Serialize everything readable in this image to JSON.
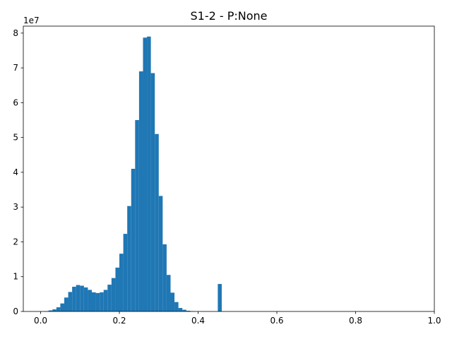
{
  "chart_data": {
    "type": "bar",
    "title": "S1-2 - P:None",
    "xlabel": "",
    "ylabel": "",
    "y_offset_label": "1e7",
    "y_scale_multiplier": 10000000,
    "xlim": [
      -0.044,
      1.0
    ],
    "ylim": [
      0,
      82000000
    ],
    "x_ticks": [
      "0.0",
      "0.2",
      "0.4",
      "0.6",
      "0.8",
      "1.0"
    ],
    "x_tick_values": [
      0.0,
      0.2,
      0.4,
      0.6,
      0.8,
      1.0
    ],
    "y_ticks": [
      "0",
      "1",
      "2",
      "3",
      "4",
      "5",
      "6",
      "7",
      "8"
    ],
    "y_tick_values": [
      0,
      10000000,
      20000000,
      30000000,
      40000000,
      50000000,
      60000000,
      70000000,
      80000000
    ],
    "grid": false,
    "legend": "none",
    "bar_color": "#1f77b4",
    "bin_width": 0.01,
    "series": [
      {
        "bin_starts": [
          0.01,
          0.02,
          0.03,
          0.04,
          0.05,
          0.06,
          0.07,
          0.08,
          0.09,
          0.1,
          0.11,
          0.12,
          0.13,
          0.14,
          0.15,
          0.16,
          0.17,
          0.18,
          0.19,
          0.2,
          0.21,
          0.22,
          0.23,
          0.24,
          0.25,
          0.26,
          0.27,
          0.28,
          0.29,
          0.3,
          0.31,
          0.32,
          0.33,
          0.34,
          0.35,
          0.36,
          0.37,
          0.38,
          0.45
        ],
        "values": [
          100000,
          300000,
          600000,
          1200000,
          2300000,
          4000000,
          5600000,
          7100000,
          7600000,
          7400000,
          6900000,
          6200000,
          5500000,
          5300000,
          5500000,
          6200000,
          7700000,
          9600000,
          12600000,
          16600000,
          22300000,
          30300000,
          41000000,
          55000000,
          69000000,
          78700000,
          79000000,
          68500000,
          51000000,
          33200000,
          19300000,
          10500000,
          5400000,
          2700000,
          1000000,
          500000,
          200000,
          100000,
          7900000
        ]
      }
    ]
  }
}
